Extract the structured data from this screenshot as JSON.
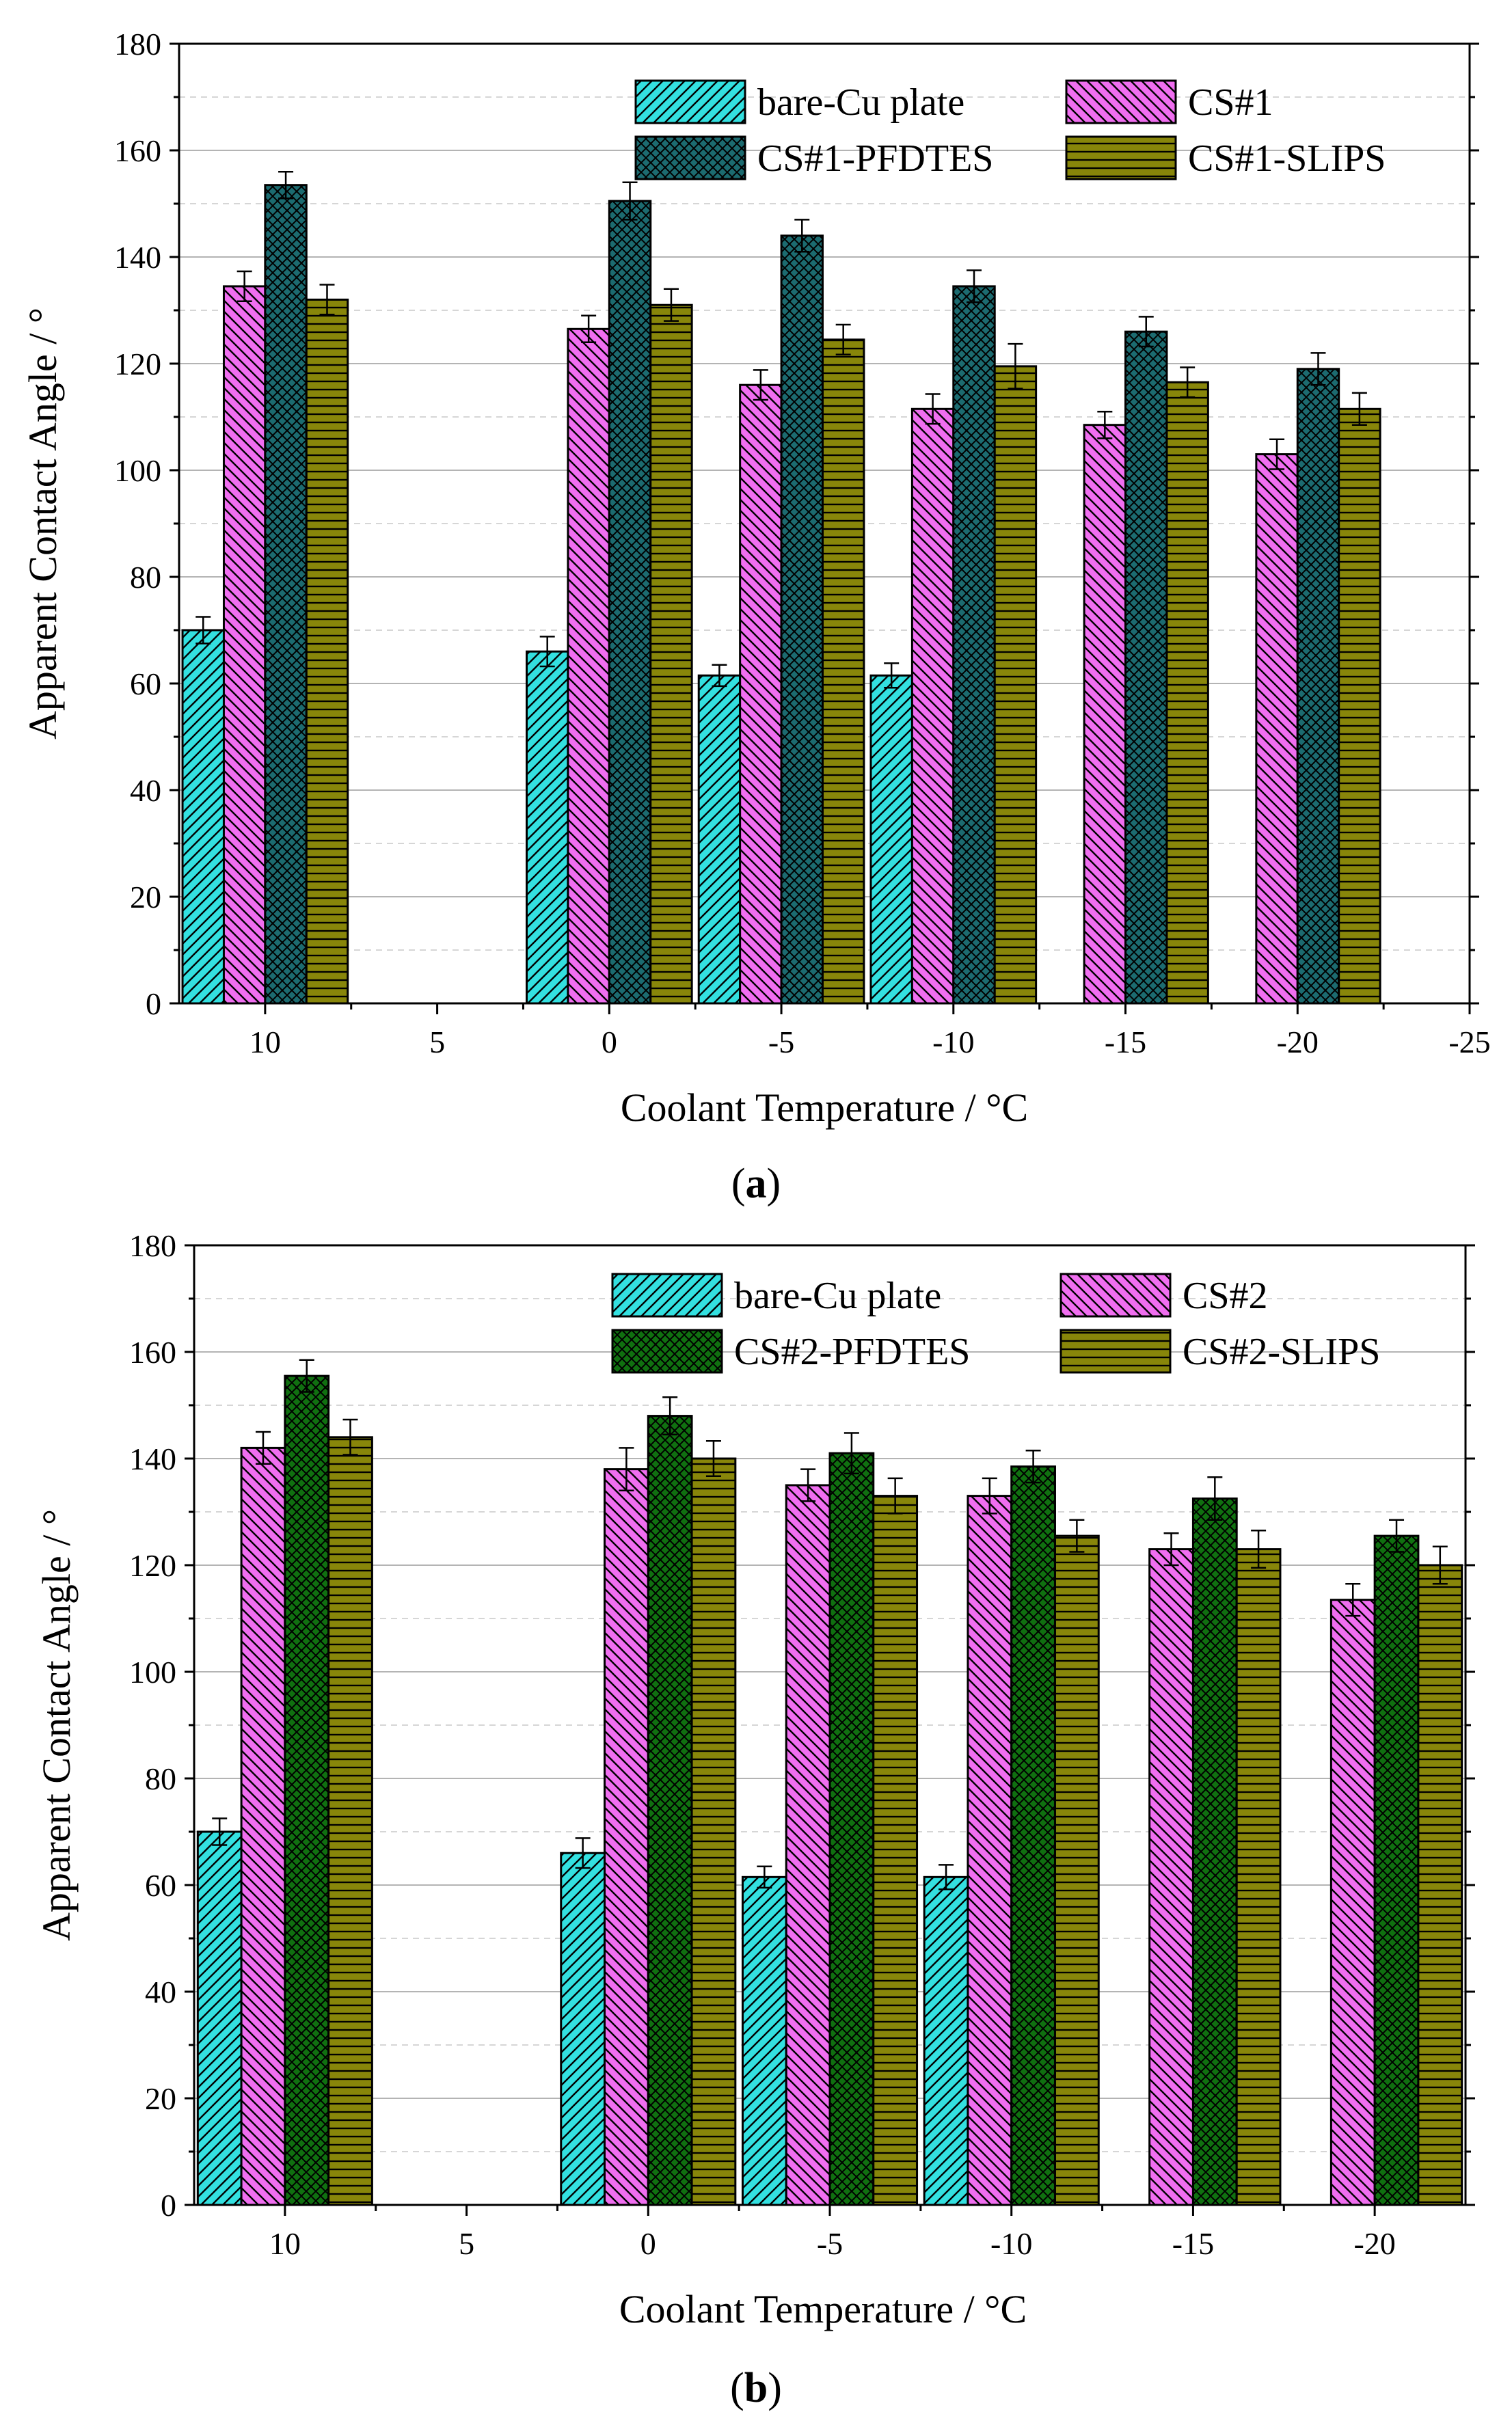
{
  "chart_data": [
    {
      "type": "bar",
      "panel_label": "a",
      "xlabel": "Coolant Temperature / °C",
      "ylabel": "Apparent Contact Angle / °",
      "ylim": [
        0,
        180
      ],
      "yticks": [
        0,
        20,
        40,
        60,
        80,
        100,
        120,
        140,
        160,
        180
      ],
      "xlim": [
        12.5,
        -25
      ],
      "xticks": [
        10,
        5,
        0,
        -5,
        -10,
        -15,
        -20,
        -25
      ],
      "xtick_labels": [
        "10",
        "5",
        "0",
        "-5",
        "-10",
        "-15",
        "-20",
        "-25"
      ],
      "grid": true,
      "legend_position": "top-right",
      "x": [
        10,
        0,
        -5,
        -10,
        -15,
        -20
      ],
      "series": [
        {
          "name": "bare-Cu plate",
          "color": "#33e0e0",
          "pattern": "diag-forward",
          "values": [
            70,
            66,
            61.5,
            61.5,
            null,
            null
          ],
          "errors": [
            2.5,
            2.8,
            2.0,
            2.3,
            null,
            null
          ]
        },
        {
          "name": "CS#1",
          "color": "#f06ef0",
          "pattern": "diag-back",
          "values": [
            134.5,
            126.5,
            116,
            111.5,
            108.5,
            103
          ],
          "errors": [
            2.8,
            2.5,
            2.8,
            2.8,
            2.5,
            2.8
          ]
        },
        {
          "name": "CS#1-PFDTES",
          "color": "#1c6b70",
          "pattern": "crosshatch",
          "values": [
            153.5,
            150.5,
            144,
            134.5,
            126,
            119
          ],
          "errors": [
            2.5,
            3.5,
            3.0,
            3.0,
            2.8,
            3.0
          ]
        },
        {
          "name": "CS#1-SLIPS",
          "color": "#88860a",
          "pattern": "horizontal",
          "values": [
            132,
            131,
            124.5,
            119.5,
            116.5,
            111.5
          ],
          "errors": [
            2.8,
            3.0,
            2.8,
            4.2,
            2.8,
            3.0
          ]
        }
      ]
    },
    {
      "type": "bar",
      "panel_label": "b",
      "xlabel": "Coolant Temperature / °C",
      "ylabel": "Apparent Contact Angle / °",
      "ylim": [
        0,
        180
      ],
      "yticks": [
        0,
        20,
        40,
        60,
        80,
        100,
        120,
        140,
        160,
        180
      ],
      "xlim": [
        12.5,
        -22.5
      ],
      "xticks": [
        10,
        5,
        0,
        -5,
        -10,
        -15,
        -20
      ],
      "xtick_labels": [
        "10",
        "5",
        "0",
        "-5",
        "-10",
        "-15",
        "-20"
      ],
      "grid": true,
      "legend_position": "top-right",
      "x": [
        10,
        0,
        -5,
        -10,
        -15,
        -20
      ],
      "series": [
        {
          "name": "bare-Cu plate",
          "color": "#33e0e0",
          "pattern": "diag-forward",
          "values": [
            70,
            66,
            61.5,
            61.5,
            null,
            null
          ],
          "errors": [
            2.5,
            2.8,
            2.0,
            2.3,
            null,
            null
          ]
        },
        {
          "name": "CS#2",
          "color": "#f06ef0",
          "pattern": "diag-back",
          "values": [
            142,
            138,
            135,
            133,
            123,
            113.5
          ],
          "errors": [
            3.0,
            4.0,
            3.0,
            3.3,
            3.0,
            3.0
          ]
        },
        {
          "name": "CS#2-PFDTES",
          "color": "#107010",
          "pattern": "crosshatch",
          "values": [
            155.5,
            148,
            141,
            138.5,
            132.5,
            125.5
          ],
          "errors": [
            3.0,
            3.5,
            3.8,
            3.0,
            4.0,
            3.0
          ]
        },
        {
          "name": "CS#2-SLIPS",
          "color": "#88860a",
          "pattern": "horizontal",
          "values": [
            144,
            140,
            133,
            125.5,
            123,
            120
          ],
          "errors": [
            3.3,
            3.3,
            3.3,
            3.0,
            3.5,
            3.5
          ]
        }
      ]
    }
  ]
}
